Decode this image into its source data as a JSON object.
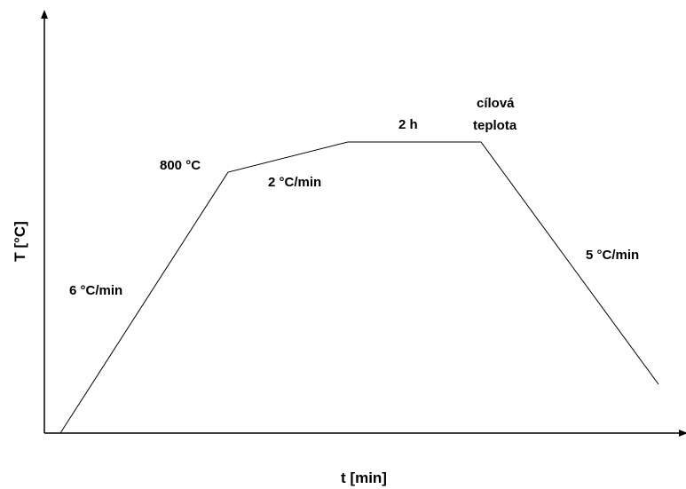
{
  "axes": {
    "y_label": "T [°C]",
    "x_label": "t [min]"
  },
  "annotations": {
    "start_temp": "800 °C",
    "heating_rate": "6 °C/min",
    "slow_rate": "2 °C/min",
    "hold_time": "2 h",
    "target": [
      "cílová",
      "teplota"
    ],
    "cooling_rate": "5 °C/min"
  }
}
